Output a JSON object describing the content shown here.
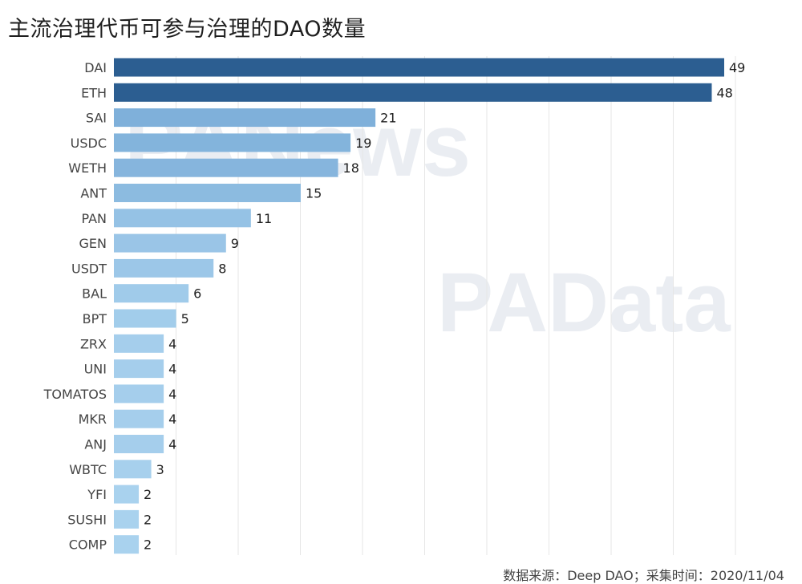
{
  "title": "主流治理代币可参与治理的DAO数量",
  "source": "数据来源：Deep DAO；采集时间：2020/11/04",
  "watermarks": {
    "primary": "PANews",
    "secondary": "PAData"
  },
  "colors": {
    "dark": "#2c5e91",
    "mid": "#7fb0da",
    "light": "#a9d2ee",
    "grid": "#e6e6e6",
    "text": "#1f1f1f",
    "label": "#444444"
  },
  "chart_data": {
    "type": "bar",
    "orientation": "horizontal",
    "title": "主流治理代币可参与治理的DAO数量",
    "categories": [
      "DAI",
      "ETH",
      "SAI",
      "USDC",
      "WETH",
      "ANT",
      "PAN",
      "GEN",
      "USDT",
      "BAL",
      "BPT",
      "ZRX",
      "UNI",
      "TOMATOS",
      "MKR",
      "ANJ",
      "WBTC",
      "YFI",
      "SUSHI",
      "COMP"
    ],
    "values": [
      49,
      48,
      21,
      19,
      18,
      15,
      11,
      9,
      8,
      6,
      5,
      4,
      4,
      4,
      4,
      4,
      3,
      2,
      2,
      2
    ],
    "xlim": [
      0,
      49
    ],
    "grid": true,
    "data_labels": true
  }
}
